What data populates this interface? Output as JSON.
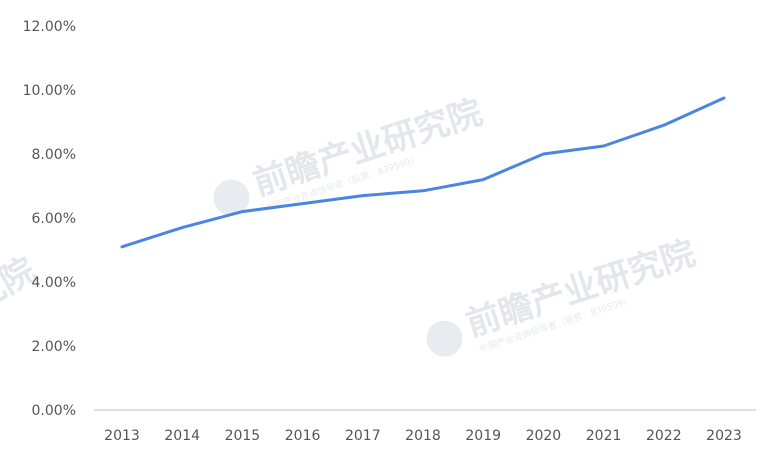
{
  "watermark": {
    "text": "前瞻产业研究院",
    "subtext": "中国产业咨询领导者（股票：839599）"
  },
  "chart_data": {
    "type": "line",
    "title": "",
    "xlabel": "",
    "ylabel": "",
    "categories": [
      "2013",
      "2014",
      "2015",
      "2016",
      "2017",
      "2018",
      "2019",
      "2020",
      "2021",
      "2022",
      "2023"
    ],
    "values": [
      5.1,
      5.7,
      6.2,
      6.45,
      6.7,
      6.85,
      7.2,
      8.0,
      8.25,
      8.9,
      9.75
    ],
    "ylim": [
      0,
      12
    ],
    "yticks": [
      "0.00%",
      "2.00%",
      "4.00%",
      "6.00%",
      "8.00%",
      "10.00%",
      "12.00%"
    ],
    "grid": false,
    "legend": "none",
    "line_color": "#4a86e0",
    "axis_color": "#bfbfbf"
  }
}
